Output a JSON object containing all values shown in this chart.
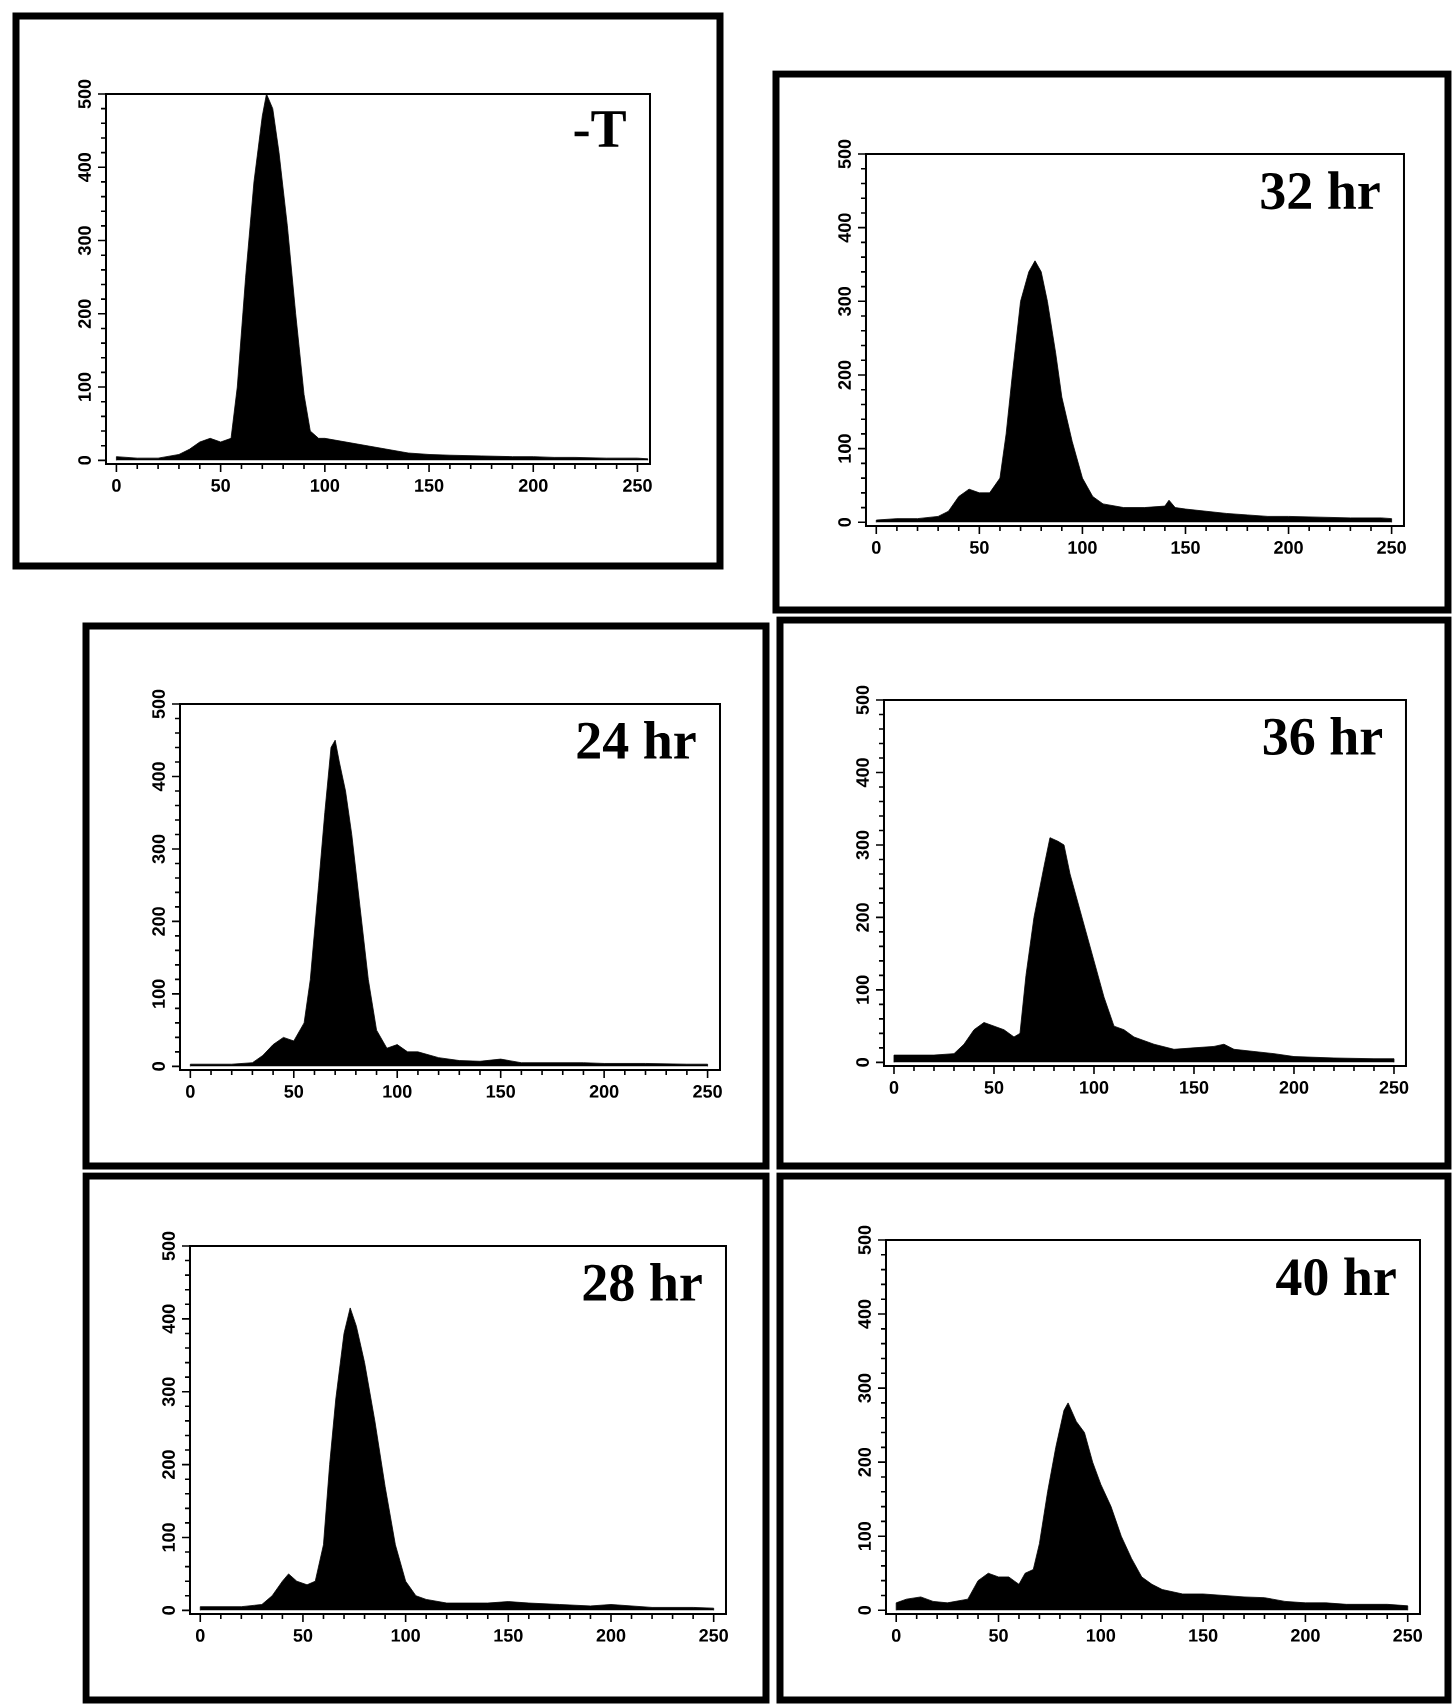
{
  "chart_data": [
    {
      "type": "area",
      "title": "-T",
      "color": "#000000",
      "xlim": [
        -5,
        256
      ],
      "ylim": [
        -5,
        500
      ],
      "xticks": [
        0,
        50,
        100,
        150,
        200,
        250
      ],
      "yticks": [
        0,
        100,
        200,
        300,
        400,
        500
      ],
      "x": [
        0,
        10,
        20,
        30,
        35,
        40,
        45,
        50,
        55,
        58,
        62,
        66,
        70,
        72,
        75,
        78,
        82,
        86,
        90,
        93,
        97,
        100,
        110,
        120,
        130,
        140,
        150,
        160,
        175,
        190,
        200,
        210,
        220,
        235,
        250,
        255
      ],
      "values": [
        5,
        3,
        3,
        8,
        15,
        25,
        30,
        25,
        30,
        100,
        250,
        380,
        470,
        500,
        480,
        420,
        320,
        200,
        90,
        40,
        30,
        30,
        25,
        20,
        15,
        10,
        8,
        7,
        6,
        5,
        5,
        4,
        4,
        3,
        3,
        2
      ]
    },
    {
      "type": "area",
      "title": "32 hr",
      "color": "#000000",
      "xlim": [
        -5,
        256
      ],
      "ylim": [
        -5,
        500
      ],
      "xticks": [
        0,
        50,
        100,
        150,
        200,
        250
      ],
      "yticks": [
        0,
        100,
        200,
        300,
        400,
        500
      ],
      "x": [
        0,
        10,
        20,
        30,
        35,
        40,
        45,
        50,
        55,
        60,
        63,
        66,
        70,
        74,
        77,
        80,
        83,
        87,
        90,
        95,
        100,
        105,
        110,
        120,
        130,
        140,
        142,
        145,
        150,
        160,
        170,
        180,
        190,
        200,
        215,
        230,
        245,
        250
      ],
      "values": [
        3,
        5,
        5,
        8,
        15,
        35,
        45,
        40,
        40,
        60,
        120,
        200,
        300,
        340,
        355,
        340,
        300,
        230,
        170,
        110,
        60,
        35,
        25,
        20,
        20,
        22,
        30,
        20,
        18,
        15,
        12,
        10,
        8,
        8,
        7,
        6,
        6,
        5
      ]
    },
    {
      "type": "area",
      "title": "24 hr",
      "color": "#000000",
      "xlim": [
        -5,
        256
      ],
      "ylim": [
        -5,
        500
      ],
      "xticks": [
        0,
        50,
        100,
        150,
        200,
        250
      ],
      "yticks": [
        0,
        100,
        200,
        300,
        400,
        500
      ],
      "x": [
        0,
        10,
        20,
        30,
        35,
        40,
        45,
        50,
        55,
        58,
        62,
        65,
        68,
        70,
        72,
        75,
        78,
        82,
        86,
        90,
        95,
        100,
        105,
        110,
        120,
        130,
        140,
        150,
        160,
        175,
        190,
        200,
        220,
        240,
        250
      ],
      "values": [
        3,
        3,
        3,
        5,
        15,
        30,
        40,
        35,
        60,
        120,
        250,
        350,
        440,
        450,
        420,
        380,
        320,
        220,
        120,
        50,
        25,
        30,
        20,
        20,
        12,
        8,
        7,
        10,
        5,
        5,
        5,
        4,
        4,
        3,
        3
      ]
    },
    {
      "type": "area",
      "title": "36 hr",
      "color": "#000000",
      "xlim": [
        -5,
        256
      ],
      "ylim": [
        -5,
        500
      ],
      "xticks": [
        0,
        50,
        100,
        150,
        200,
        250
      ],
      "yticks": [
        0,
        100,
        200,
        300,
        400,
        500
      ],
      "x": [
        0,
        10,
        20,
        30,
        35,
        40,
        45,
        50,
        55,
        60,
        63,
        66,
        70,
        75,
        78,
        82,
        85,
        88,
        92,
        96,
        100,
        105,
        110,
        115,
        120,
        130,
        140,
        150,
        160,
        165,
        170,
        180,
        190,
        200,
        220,
        240,
        250
      ],
      "values": [
        10,
        10,
        10,
        12,
        25,
        45,
        55,
        50,
        45,
        35,
        40,
        120,
        200,
        270,
        310,
        305,
        300,
        260,
        220,
        180,
        140,
        90,
        50,
        45,
        35,
        25,
        18,
        20,
        22,
        25,
        18,
        15,
        12,
        8,
        6,
        5,
        5
      ]
    },
    {
      "type": "area",
      "title": "28 hr",
      "color": "#000000",
      "xlim": [
        -5,
        256
      ],
      "ylim": [
        -5,
        500
      ],
      "xticks": [
        0,
        50,
        100,
        150,
        200,
        250
      ],
      "yticks": [
        0,
        100,
        200,
        300,
        400,
        500
      ],
      "x": [
        0,
        10,
        20,
        30,
        35,
        40,
        43,
        47,
        52,
        56,
        60,
        63,
        66,
        70,
        73,
        76,
        80,
        85,
        90,
        95,
        100,
        105,
        110,
        120,
        140,
        150,
        160,
        175,
        190,
        200,
        220,
        240,
        250
      ],
      "values": [
        5,
        5,
        5,
        8,
        20,
        40,
        50,
        40,
        35,
        40,
        90,
        200,
        290,
        380,
        415,
        390,
        340,
        260,
        170,
        90,
        40,
        20,
        15,
        10,
        10,
        12,
        10,
        8,
        6,
        8,
        4,
        4,
        3
      ]
    },
    {
      "type": "area",
      "title": "40 hr",
      "color": "#000000",
      "xlim": [
        -5,
        256
      ],
      "ylim": [
        -5,
        500
      ],
      "xticks": [
        0,
        50,
        100,
        150,
        200,
        250
      ],
      "yticks": [
        0,
        100,
        200,
        300,
        400,
        500
      ],
      "x": [
        0,
        5,
        12,
        18,
        25,
        35,
        40,
        45,
        50,
        55,
        60,
        63,
        67,
        70,
        74,
        78,
        82,
        84,
        88,
        92,
        96,
        100,
        105,
        110,
        115,
        120,
        125,
        130,
        140,
        150,
        160,
        170,
        180,
        190,
        200,
        210,
        220,
        240,
        250
      ],
      "values": [
        10,
        15,
        18,
        12,
        10,
        15,
        40,
        50,
        45,
        45,
        35,
        50,
        55,
        90,
        160,
        220,
        270,
        280,
        255,
        240,
        200,
        170,
        140,
        100,
        70,
        45,
        35,
        28,
        22,
        22,
        20,
        18,
        17,
        12,
        10,
        10,
        8,
        8,
        6
      ]
    }
  ]
}
